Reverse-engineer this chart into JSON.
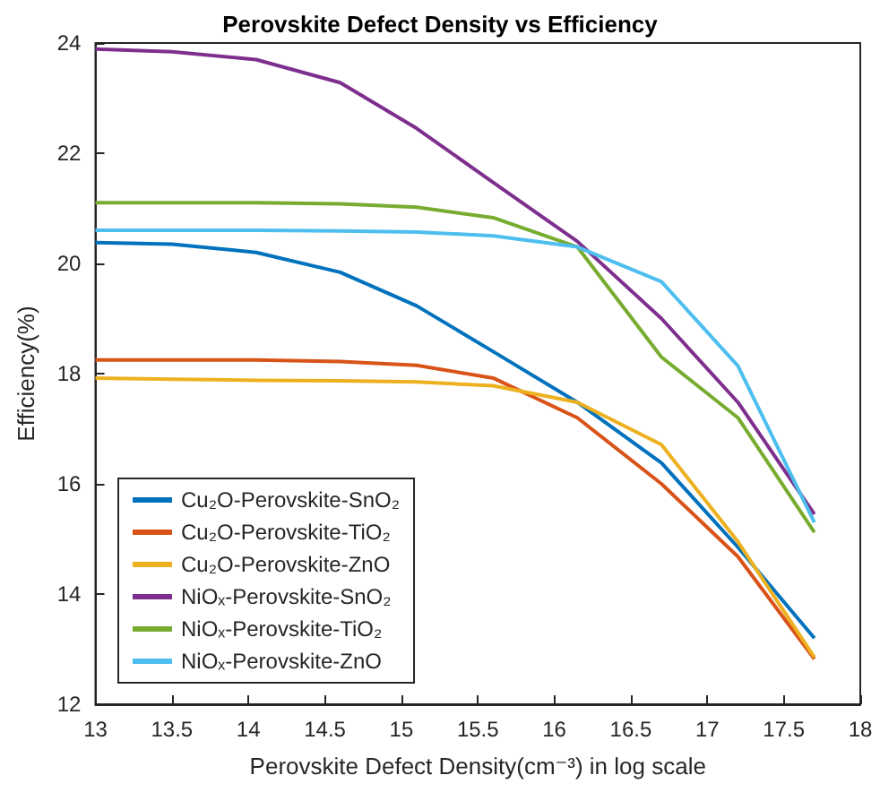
{
  "chart_data": {
    "type": "line",
    "title": "Perovskite Defect Density vs Efficiency",
    "xlabel": "Perovskite Defect Density(cm⁻³) in log scale",
    "ylabel": "Efficiency(%)",
    "x": [
      13,
      13.5,
      14.05,
      14.6,
      15.1,
      15.6,
      16.15,
      16.7,
      17.2,
      17.7
    ],
    "series": [
      {
        "name": "Cu₂O-Perovskite-SnO₂",
        "color": "#0072bd",
        "values": [
          20.38,
          20.35,
          20.2,
          19.84,
          19.23,
          18.4,
          17.48,
          16.38,
          14.85,
          13.2
        ]
      },
      {
        "name": "Cu₂O-Perovskite-TiO₂",
        "color": "#d95319",
        "values": [
          18.25,
          18.25,
          18.25,
          18.22,
          18.15,
          17.92,
          17.2,
          16.0,
          14.68,
          12.82
        ]
      },
      {
        "name": "Cu₂O-Perovskite-ZnO",
        "color": "#edb120",
        "values": [
          17.92,
          17.9,
          17.88,
          17.87,
          17.85,
          17.78,
          17.48,
          16.71,
          14.95,
          12.85
        ]
      },
      {
        "name": "NiOₓ-Perovskite-SnO₂",
        "color": "#7e2f8e",
        "values": [
          23.89,
          23.84,
          23.7,
          23.28,
          22.45,
          21.47,
          20.4,
          19.0,
          17.48,
          15.45
        ]
      },
      {
        "name": "NiOₓ-Perovskite-TiO₂",
        "color": "#77ac30",
        "values": [
          21.1,
          21.1,
          21.1,
          21.08,
          21.02,
          20.83,
          20.3,
          18.3,
          17.2,
          15.12
        ]
      },
      {
        "name": "NiOₓ-Perovskite-ZnO",
        "color": "#4dbeee",
        "values": [
          20.6,
          20.6,
          20.6,
          20.59,
          20.57,
          20.5,
          20.3,
          19.67,
          18.14,
          15.3
        ]
      }
    ],
    "xlim": [
      13,
      18
    ],
    "xticks": [
      13,
      13.5,
      14,
      14.5,
      15,
      15.5,
      16,
      16.5,
      17,
      17.5,
      18
    ],
    "ylim": [
      12,
      24
    ],
    "yticks": [
      12,
      14,
      16,
      18,
      20,
      22,
      24
    ],
    "grid": false,
    "legend": "bottom left",
    "marker": "none",
    "line_style": "solid"
  }
}
